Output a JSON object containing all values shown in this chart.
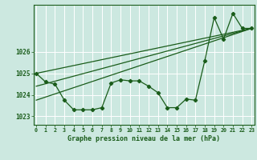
{
  "title": "Graphe pression niveau de la mer (hPa)",
  "background_color": "#cce8e0",
  "grid_color": "#ffffff",
  "line_color": "#1a5c1a",
  "x_ticks": [
    0,
    1,
    2,
    3,
    4,
    5,
    6,
    7,
    8,
    9,
    10,
    11,
    12,
    13,
    14,
    15,
    16,
    17,
    18,
    19,
    20,
    21,
    22,
    23
  ],
  "ylim": [
    1022.6,
    1028.2
  ],
  "yticks": [
    1023,
    1024,
    1025,
    1026
  ],
  "series1_x": [
    0,
    1,
    2,
    3,
    4,
    5,
    6,
    7,
    8,
    9,
    10,
    11,
    12,
    13,
    14,
    15,
    16,
    17,
    18,
    19,
    20,
    21,
    22,
    23
  ],
  "series1_y": [
    1025.0,
    1024.6,
    1024.5,
    1023.75,
    1023.3,
    1023.3,
    1023.3,
    1023.4,
    1024.55,
    1024.7,
    1024.65,
    1024.65,
    1024.4,
    1024.1,
    1023.4,
    1023.4,
    1023.8,
    1023.75,
    1025.6,
    1027.6,
    1026.6,
    1027.8,
    1027.1,
    1027.1
  ],
  "trend1_x": [
    0,
    23
  ],
  "trend1_y": [
    1025.0,
    1027.1
  ],
  "trend2_x": [
    0,
    23
  ],
  "trend2_y": [
    1023.75,
    1027.1
  ],
  "trend3_x": [
    0,
    23
  ],
  "trend3_y": [
    1024.4,
    1027.1
  ]
}
